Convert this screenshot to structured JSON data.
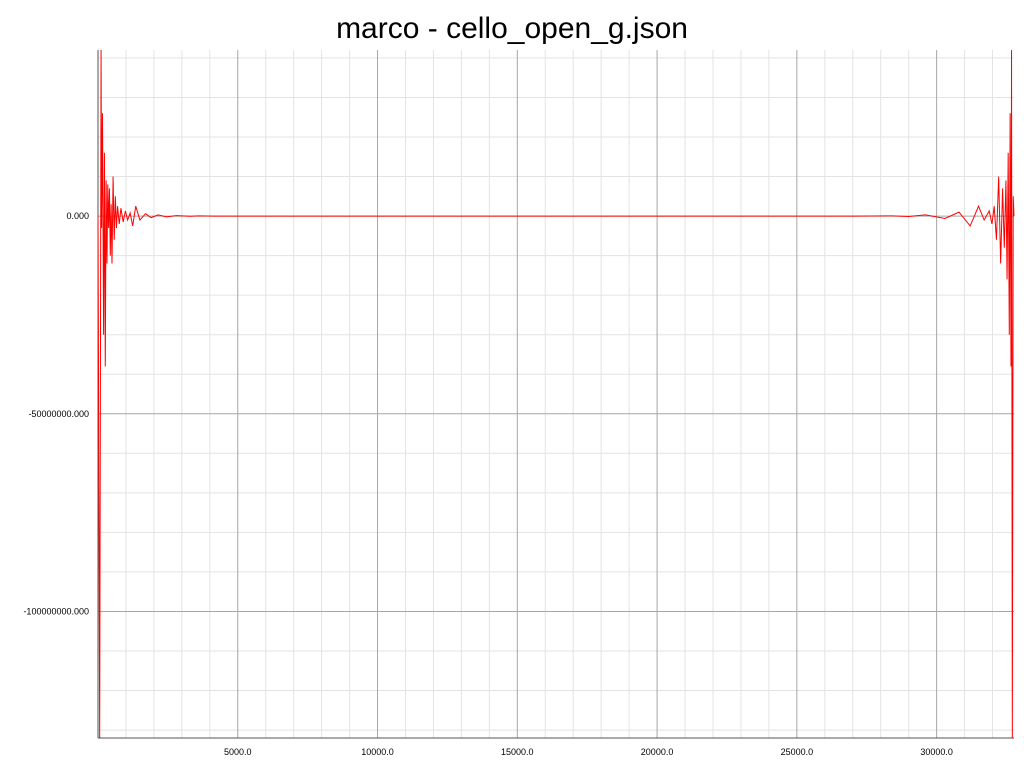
{
  "chart_data": {
    "type": "line",
    "title": "marco - cello_open_g.json",
    "xlabel": "",
    "ylabel": "",
    "xlim": [
      0,
      32768
    ],
    "ylim": [
      -132000000,
      42000000
    ],
    "grid": true,
    "legend": "none",
    "x_ticks": [
      5000,
      10000,
      15000,
      20000,
      25000,
      30000
    ],
    "x_tick_labels": [
      "5000.0",
      "10000.0",
      "15000.0",
      "20000.0",
      "25000.0",
      "30000.0"
    ],
    "y_ticks": [
      0,
      -50000000,
      -100000000
    ],
    "y_tick_labels": [
      "0.000",
      "-50000000.000",
      "-100000000.000"
    ],
    "series": [
      {
        "color": "#ff0000",
        "x": [
          0,
          60,
          110,
          130,
          160,
          200,
          230,
          260,
          290,
          320,
          350,
          380,
          410,
          440,
          470,
          500,
          540,
          580,
          620,
          660,
          700,
          760,
          820,
          900,
          980,
          1060,
          1150,
          1240,
          1350,
          1500,
          1700,
          1900,
          2150,
          2450,
          2800,
          3300,
          3600,
          4200,
          10000,
          16000,
          22000,
          27000,
          28400,
          29000,
          29600,
          30300,
          30800,
          31200,
          31500,
          31700,
          31880,
          31980,
          32060,
          32140,
          32220,
          32290,
          32360,
          32420,
          32480,
          32520,
          32560,
          32600,
          32630,
          32660,
          32680,
          32708,
          32740,
          32768
        ],
        "y": [
          0,
          -132000000,
          42000000,
          -3000000,
          26000000,
          -30000000,
          16000000,
          -38000000,
          9000000,
          -12000000,
          8000000,
          -3000000,
          7000000,
          -10000000,
          3000000,
          -12000000,
          10000000,
          -6000000,
          5000000,
          -3000000,
          2500000,
          -2000000,
          2000000,
          -1500000,
          1300000,
          -1000000,
          800000,
          -2500000,
          2500000,
          -1000000,
          600000,
          -400000,
          300000,
          -200000,
          100000,
          -50000,
          50000,
          0,
          0,
          0,
          0,
          0,
          50000,
          -100000,
          300000,
          -600000,
          1000000,
          -2500000,
          2500000,
          -1000000,
          1300000,
          -2000000,
          2500000,
          -6000000,
          10000000,
          -12000000,
          7000000,
          -8000000,
          9000000,
          -16000000,
          16000000,
          -30000000,
          26000000,
          -38000000,
          42000000,
          -132000000,
          5000000,
          0
        ]
      }
    ]
  }
}
